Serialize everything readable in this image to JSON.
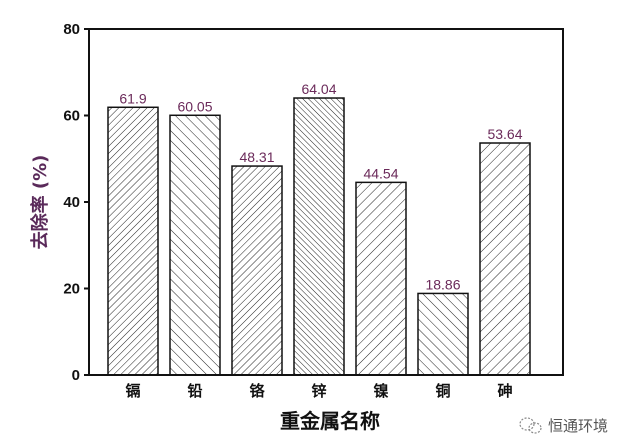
{
  "chart_data": {
    "type": "bar",
    "title": "",
    "xlabel": "重金属名称",
    "ylabel": "去除率 (%)",
    "ylim": [
      0,
      80
    ],
    "yticks": [
      0,
      20,
      40,
      60,
      80
    ],
    "categories": [
      "镉",
      "铅",
      "铬",
      "锌",
      "镍",
      "铜",
      "砷"
    ],
    "values": [
      61.9,
      60.05,
      48.31,
      64.04,
      44.54,
      18.86,
      53.64
    ],
    "data_labels": [
      "61.9",
      "60.05",
      "48.31",
      "64.04",
      "44.54",
      "18.86",
      "53.64"
    ],
    "hatch": [
      "forward-dense",
      "back",
      "forward-dense",
      "back-dense",
      "forward",
      "back",
      "forward"
    ],
    "grid": false,
    "colors": {
      "bar_fill": "#ffffff",
      "hatch": "#222222",
      "data_label": "#6b2a5a",
      "ylabel": "#5a2a5a"
    }
  },
  "watermark": {
    "text": "恒通环境",
    "icon": "wechat-icon"
  }
}
